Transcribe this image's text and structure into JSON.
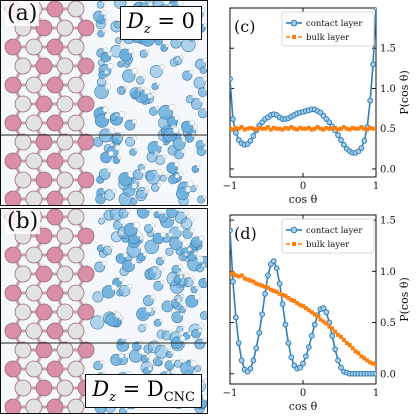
{
  "panels": {
    "a": {
      "letter": "(a)",
      "label": "D",
      "sub": "z",
      "rhs": " = 0"
    },
    "b": {
      "letter": "(b)",
      "label": "D",
      "sub": "z",
      "rhs": " = D",
      "rhs_sub": "CNC"
    }
  },
  "colors": {
    "contact": "#2e7fb8",
    "bulk": "#ff7f0e",
    "atom_pink": "#d98fa8",
    "atom_white": "#e2e2e2",
    "atom_blue": "#6aaedc"
  },
  "chart_data": [
    {
      "type": "line",
      "panel_label": "(c)",
      "xlabel": "cos θ",
      "ylabel": "P(cos θ)",
      "xlim": [
        -1,
        1
      ],
      "ylim": [
        -0.1,
        2.0
      ],
      "xticks": [
        -1,
        0,
        1
      ],
      "yticks": [
        0.0,
        0.5,
        1.0,
        1.5
      ],
      "legend": "top-right",
      "series": [
        {
          "name": "contact layer",
          "marker": "circle",
          "color": "#2e7fb8",
          "x": [
            -1.0,
            -0.96,
            -0.92,
            -0.88,
            -0.84,
            -0.8,
            -0.76,
            -0.72,
            -0.68,
            -0.64,
            -0.6,
            -0.56,
            -0.52,
            -0.48,
            -0.44,
            -0.4,
            -0.36,
            -0.32,
            -0.28,
            -0.24,
            -0.2,
            -0.16,
            -0.12,
            -0.08,
            -0.04,
            0.0,
            0.04,
            0.08,
            0.12,
            0.16,
            0.2,
            0.24,
            0.28,
            0.32,
            0.36,
            0.4,
            0.44,
            0.48,
            0.52,
            0.56,
            0.6,
            0.64,
            0.68,
            0.72,
            0.76,
            0.8,
            0.84,
            0.88,
            0.92,
            0.96,
            1.0
          ],
          "y": [
            1.12,
            0.62,
            0.45,
            0.36,
            0.32,
            0.3,
            0.31,
            0.35,
            0.41,
            0.48,
            0.54,
            0.58,
            0.62,
            0.64,
            0.67,
            0.68,
            0.67,
            0.64,
            0.62,
            0.62,
            0.63,
            0.65,
            0.67,
            0.69,
            0.7,
            0.71,
            0.72,
            0.73,
            0.74,
            0.74,
            0.72,
            0.7,
            0.66,
            0.62,
            0.58,
            0.53,
            0.48,
            0.42,
            0.36,
            0.3,
            0.25,
            0.22,
            0.2,
            0.2,
            0.22,
            0.26,
            0.35,
            0.52,
            0.85,
            1.3,
            2.0
          ]
        },
        {
          "name": "bulk layer",
          "marker": "square",
          "color": "#ff7f0e",
          "x": [
            -1.0,
            -0.96,
            -0.92,
            -0.88,
            -0.84,
            -0.8,
            -0.76,
            -0.72,
            -0.68,
            -0.64,
            -0.6,
            -0.56,
            -0.52,
            -0.48,
            -0.44,
            -0.4,
            -0.36,
            -0.32,
            -0.28,
            -0.24,
            -0.2,
            -0.16,
            -0.12,
            -0.08,
            -0.04,
            0.0,
            0.04,
            0.08,
            0.12,
            0.16,
            0.2,
            0.24,
            0.28,
            0.32,
            0.36,
            0.4,
            0.44,
            0.48,
            0.52,
            0.56,
            0.6,
            0.64,
            0.68,
            0.72,
            0.76,
            0.8,
            0.84,
            0.88,
            0.92,
            0.96,
            1.0
          ],
          "y": [
            0.5,
            0.49,
            0.51,
            0.5,
            0.52,
            0.49,
            0.5,
            0.51,
            0.5,
            0.49,
            0.51,
            0.5,
            0.5,
            0.52,
            0.49,
            0.51,
            0.5,
            0.5,
            0.49,
            0.51,
            0.5,
            0.52,
            0.5,
            0.49,
            0.51,
            0.5,
            0.5,
            0.51,
            0.49,
            0.5,
            0.52,
            0.5,
            0.49,
            0.51,
            0.5,
            0.5,
            0.51,
            0.49,
            0.5,
            0.52,
            0.5,
            0.49,
            0.51,
            0.5,
            0.5,
            0.52,
            0.5,
            0.49,
            0.51,
            0.5,
            0.5
          ]
        }
      ]
    },
    {
      "type": "line",
      "panel_label": "(d)",
      "xlabel": "cos θ",
      "ylabel": "P(cos θ)",
      "xlim": [
        -1,
        1
      ],
      "ylim": [
        -0.1,
        1.55
      ],
      "xticks": [
        -1,
        0,
        1
      ],
      "yticks": [
        0.0,
        0.5,
        1.0,
        1.5
      ],
      "legend": "top-right",
      "series": [
        {
          "name": "contact layer",
          "marker": "circle",
          "color": "#2e7fb8",
          "x": [
            -1.0,
            -0.96,
            -0.92,
            -0.88,
            -0.84,
            -0.8,
            -0.76,
            -0.72,
            -0.68,
            -0.64,
            -0.6,
            -0.56,
            -0.52,
            -0.48,
            -0.44,
            -0.4,
            -0.36,
            -0.32,
            -0.28,
            -0.24,
            -0.2,
            -0.16,
            -0.12,
            -0.08,
            -0.04,
            0.0,
            0.04,
            0.08,
            0.12,
            0.16,
            0.2,
            0.24,
            0.28,
            0.32,
            0.36,
            0.4,
            0.44,
            0.48,
            0.52,
            0.56,
            0.6,
            0.64,
            0.68,
            0.72,
            0.76,
            0.8,
            0.84,
            0.88,
            0.92,
            0.96,
            1.0
          ],
          "y": [
            1.4,
            0.9,
            0.55,
            0.3,
            0.13,
            0.04,
            0.02,
            0.05,
            0.13,
            0.25,
            0.4,
            0.58,
            0.78,
            0.96,
            1.07,
            1.1,
            1.03,
            0.88,
            0.68,
            0.48,
            0.3,
            0.16,
            0.08,
            0.05,
            0.06,
            0.1,
            0.17,
            0.26,
            0.37,
            0.48,
            0.57,
            0.63,
            0.64,
            0.6,
            0.5,
            0.37,
            0.24,
            0.13,
            0.06,
            0.02,
            0.01,
            0.0,
            0.0,
            0.0,
            0.0,
            0.0,
            0.0,
            0.0,
            0.0,
            0.0,
            0.0
          ]
        },
        {
          "name": "bulk layer",
          "marker": "square",
          "color": "#ff7f0e",
          "x": [
            -1.0,
            -0.96,
            -0.92,
            -0.88,
            -0.84,
            -0.8,
            -0.76,
            -0.72,
            -0.68,
            -0.64,
            -0.6,
            -0.56,
            -0.52,
            -0.48,
            -0.44,
            -0.4,
            -0.36,
            -0.32,
            -0.28,
            -0.24,
            -0.2,
            -0.16,
            -0.12,
            -0.08,
            -0.04,
            0.0,
            0.04,
            0.08,
            0.12,
            0.16,
            0.2,
            0.24,
            0.28,
            0.32,
            0.36,
            0.4,
            0.44,
            0.48,
            0.52,
            0.56,
            0.6,
            0.64,
            0.68,
            0.72,
            0.76,
            0.8,
            0.84,
            0.88,
            0.92,
            0.96,
            1.0
          ],
          "y": [
            0.97,
            0.98,
            0.96,
            0.95,
            0.96,
            0.93,
            0.92,
            0.91,
            0.9,
            0.88,
            0.87,
            0.86,
            0.85,
            0.84,
            0.82,
            0.81,
            0.8,
            0.78,
            0.77,
            0.76,
            0.74,
            0.72,
            0.71,
            0.69,
            0.67,
            0.66,
            0.64,
            0.62,
            0.6,
            0.58,
            0.56,
            0.53,
            0.51,
            0.49,
            0.46,
            0.44,
            0.41,
            0.38,
            0.36,
            0.33,
            0.3,
            0.28,
            0.25,
            0.22,
            0.2,
            0.17,
            0.15,
            0.13,
            0.11,
            0.1,
            0.09
          ]
        }
      ]
    }
  ]
}
